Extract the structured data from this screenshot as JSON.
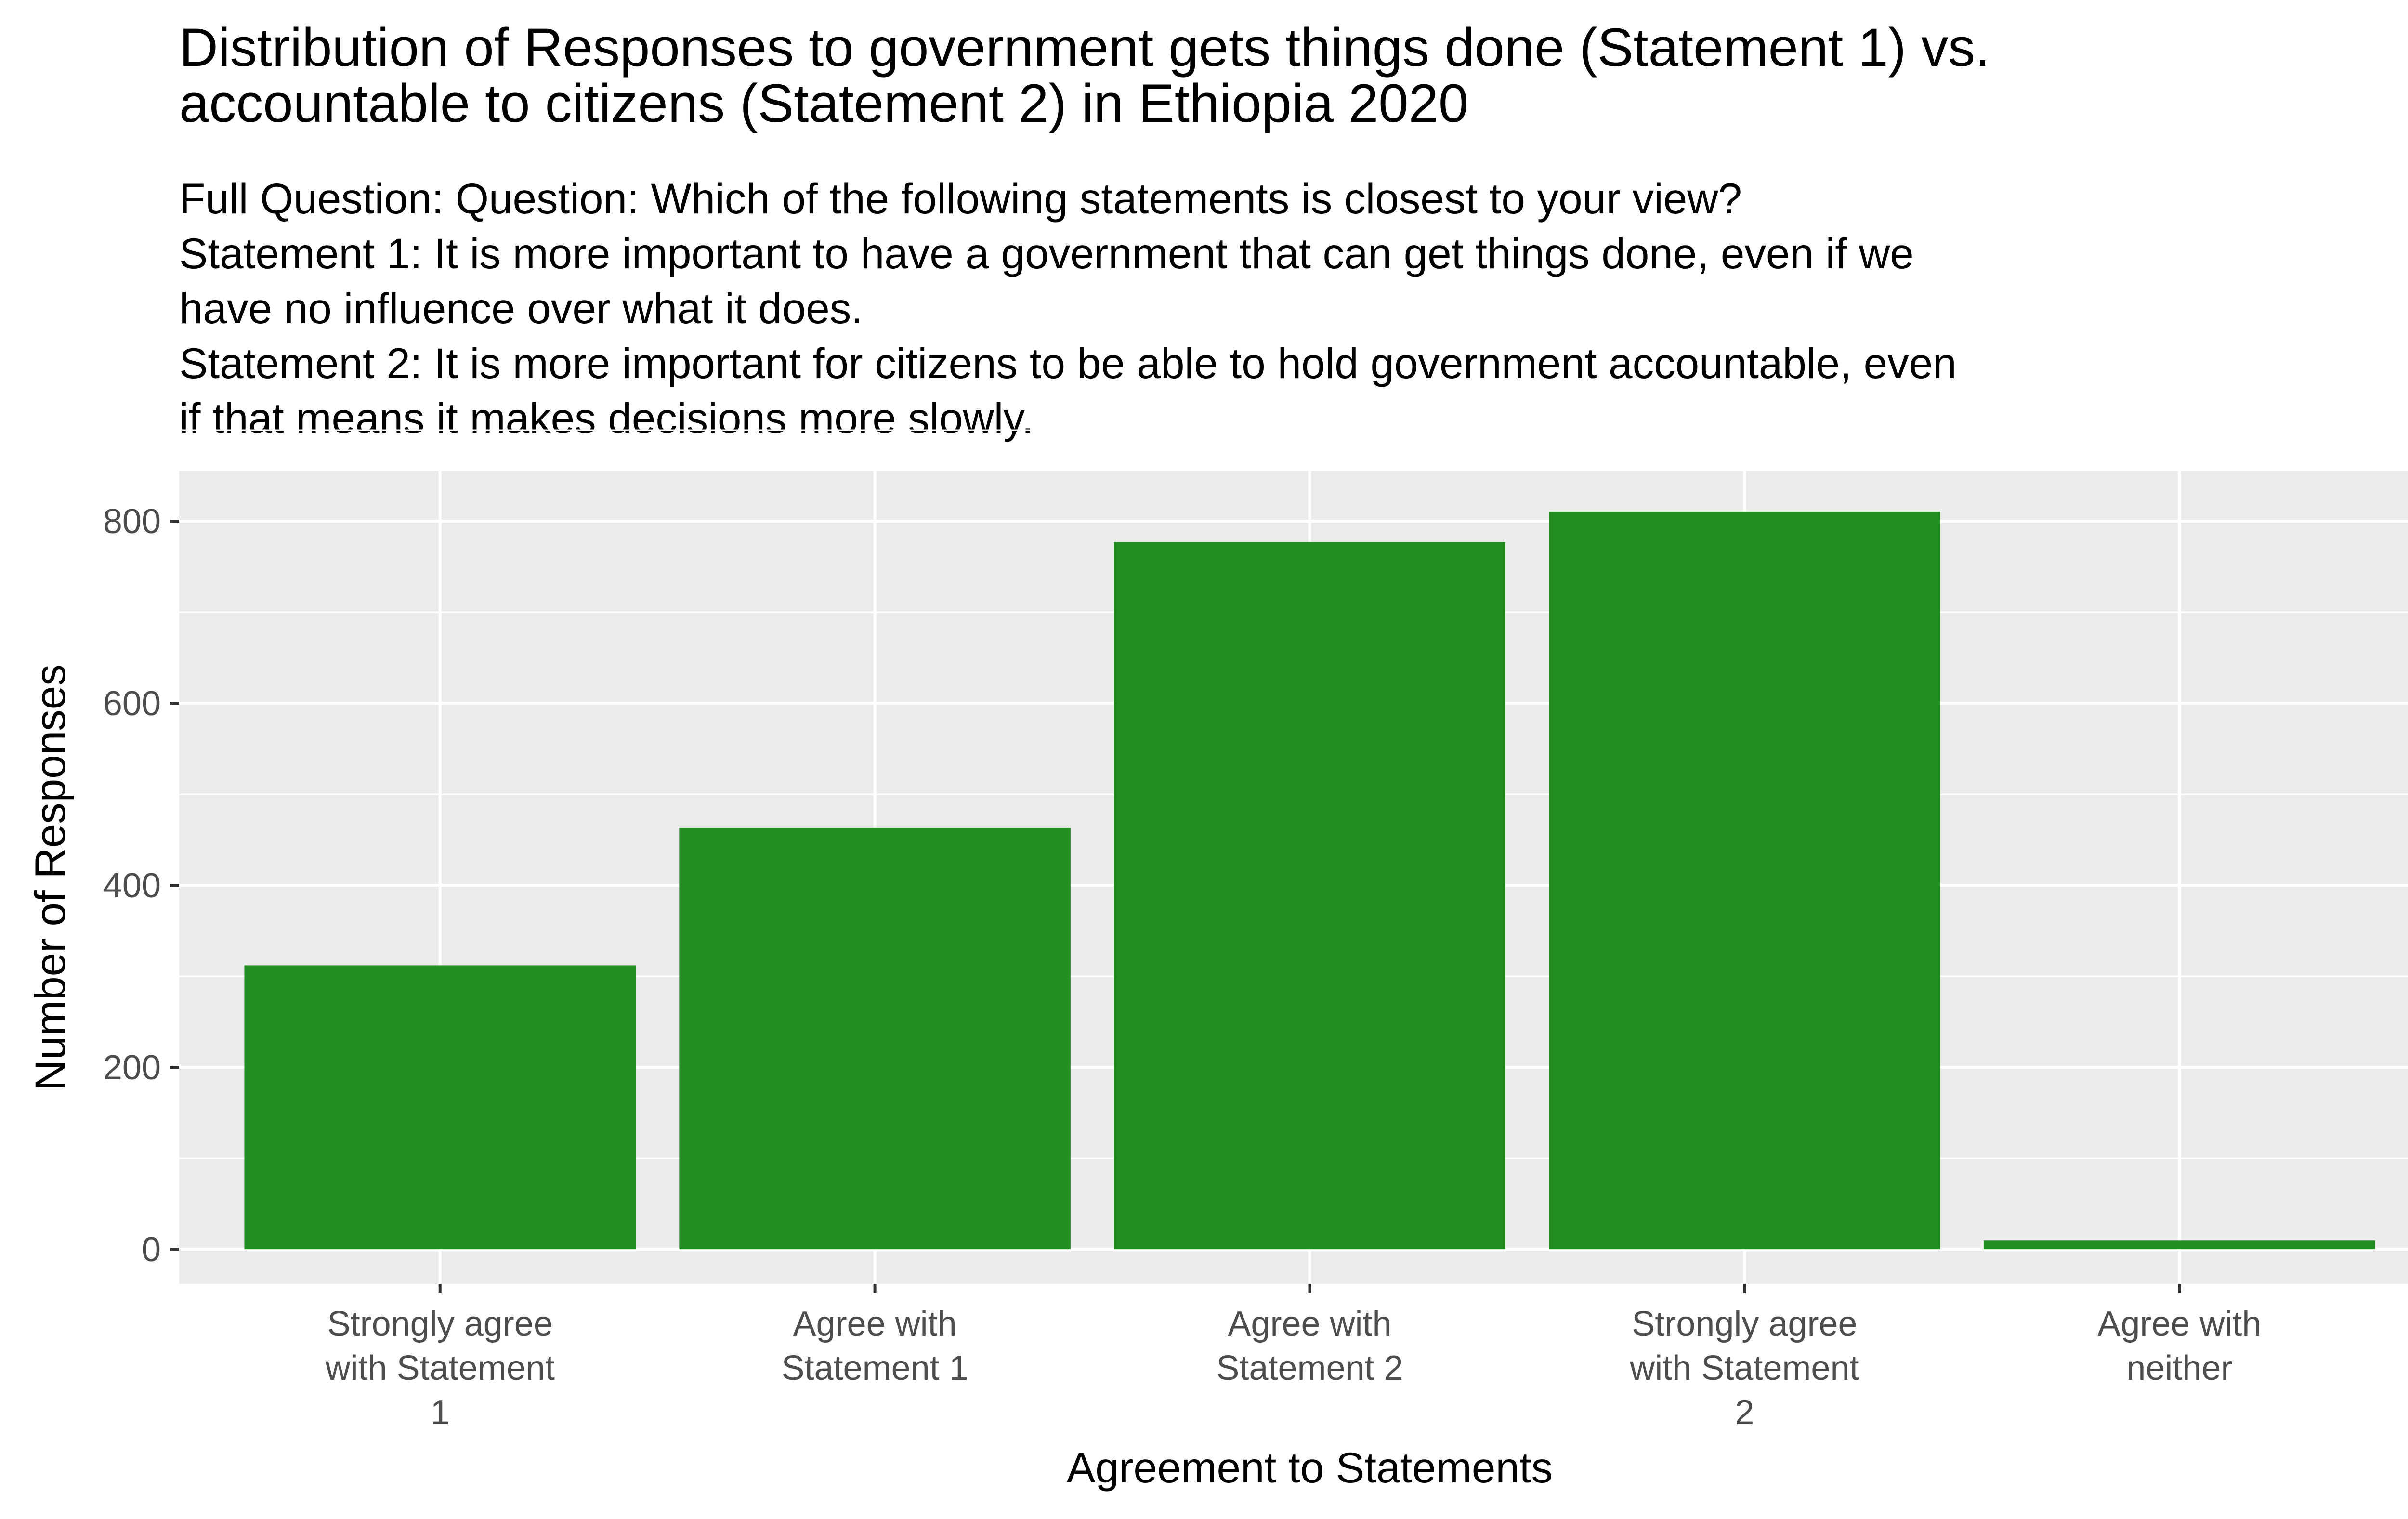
{
  "chart_data": {
    "type": "bar",
    "title": "Distribution of Responses to government gets things done (Statement 1) vs. accountable to citizens (Statement 2) in Ethiopia 2020",
    "title_lines": [
      "Distribution of Responses to government gets things done (Statement 1) vs.",
      "accountable to citizens (Statement 2) in Ethiopia 2020"
    ],
    "subtitle_lines": [
      "Full Question: Question: Which of the following statements is closest to your view?",
      "Statement 1: It is more important to have a government that can get things done, even if we",
      "have no influence over what it does.",
      "Statement 2: It is more important for citizens to be able to hold government accountable, even",
      "if that means it makes decisions more slowly."
    ],
    "xlabel": "Agreement to Statements",
    "ylabel": "Number of Responses",
    "categories": [
      "Strongly agree with Statement 1",
      "Agree with Statement 1",
      "Agree with Statement 2",
      "Strongly agree with Statement 2",
      "Agree with neither"
    ],
    "category_label_lines": [
      [
        "Strongly agree",
        "with Statement",
        "1"
      ],
      [
        "Agree with",
        "Statement 1"
      ],
      [
        "Agree with",
        "Statement 2"
      ],
      [
        "Strongly agree",
        "with Statement",
        "2"
      ],
      [
        "Agree with",
        "neither"
      ]
    ],
    "values": [
      312,
      463,
      777,
      810,
      10
    ],
    "ylim": [
      -38,
      855
    ],
    "yticks": [
      0,
      200,
      400,
      600,
      800
    ],
    "grid": true,
    "legend": "none",
    "colors": {
      "bar": "#228b22",
      "panel": "#ebebeb",
      "grid": "#ffffff",
      "tick_text": "#4d4d4d",
      "tick_mark": "#333333"
    }
  }
}
